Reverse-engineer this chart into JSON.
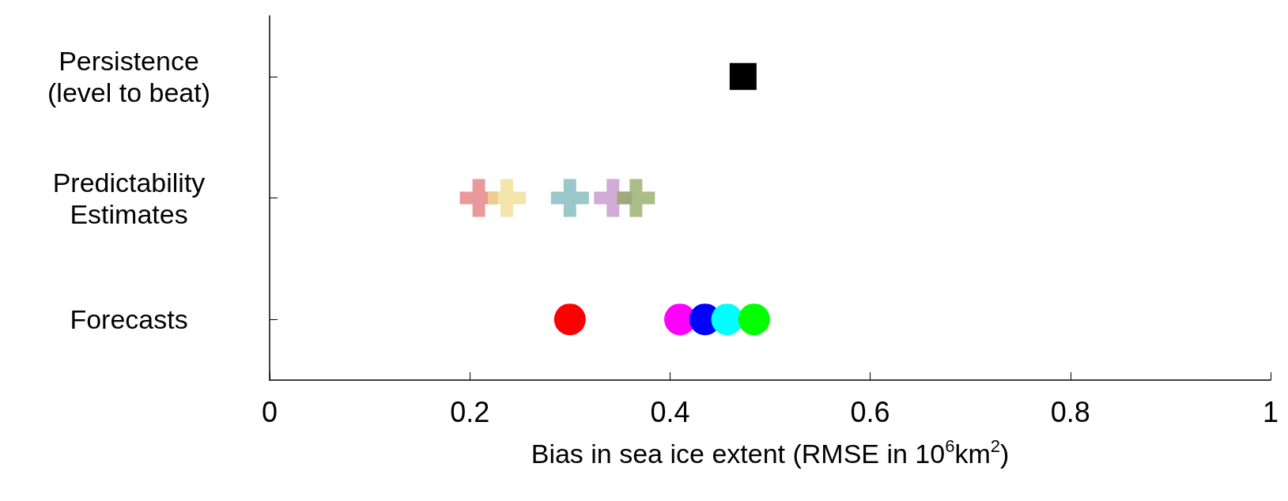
{
  "chart_data": {
    "type": "scatter",
    "orientation": "horizontal",
    "xlabel": "Bias in sea ice extent (RMSE in 10$^{6}$km$^{2}$)",
    "categories": [
      "Persistence\n(level to beat)",
      "Predictability\nEstimates",
      "Forecasts"
    ],
    "xlim": [
      0,
      1
    ],
    "xticks": [
      0,
      0.2,
      0.4,
      0.6,
      0.8,
      1
    ],
    "grid": false,
    "series": [
      {
        "color": "#000000",
        "marker": "square",
        "values": [
          0.473,
          null,
          null
        ]
      },
      {
        "color": "#e07878",
        "marker": "cross",
        "values": [
          null,
          0.209,
          null
        ]
      },
      {
        "color": "#f0dc90",
        "marker": "cross",
        "values": [
          null,
          0.237,
          null
        ]
      },
      {
        "color": "#78b4b8",
        "marker": "cross",
        "values": [
          null,
          0.3,
          null
        ]
      },
      {
        "color": "#c090c8",
        "marker": "cross",
        "values": [
          null,
          0.343,
          null
        ]
      },
      {
        "color": "#90a860",
        "marker": "cross",
        "values": [
          null,
          0.366,
          null
        ]
      },
      {
        "color": "#ff0000",
        "marker": "circle",
        "values": [
          null,
          null,
          0.3
        ]
      },
      {
        "color": "#ff00ff",
        "marker": "circle",
        "values": [
          null,
          null,
          0.41
        ]
      },
      {
        "color": "#0000ff",
        "marker": "circle",
        "values": [
          null,
          null,
          0.435
        ]
      },
      {
        "color": "#00ffff",
        "marker": "circle",
        "values": [
          null,
          null,
          0.457
        ]
      },
      {
        "color": "#00ff00",
        "marker": "circle",
        "values": [
          null,
          null,
          0.484
        ]
      }
    ]
  }
}
